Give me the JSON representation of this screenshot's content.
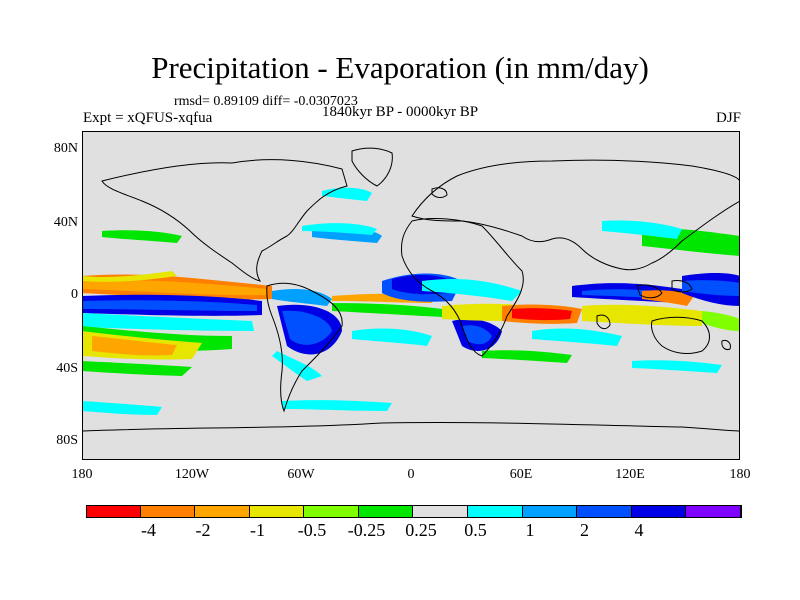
{
  "title": "Precipitation - Evaporation (in mm/day)",
  "stats": "rmsd= 0.89109 diff= -0.0307023",
  "experiment": "Expt = xQFUS-xqfua",
  "period": "1840kyr BP - 0000kyr BP",
  "season": "DJF",
  "lat_labels": [
    "80N",
    "40N",
    "0",
    "40S",
    "80S"
  ],
  "lon_labels": [
    "180",
    "120W",
    "60W",
    "0",
    "60E",
    "120E",
    "180"
  ],
  "colorbar": {
    "colors": [
      "#ff0000",
      "#ff8000",
      "#ffa500",
      "#e6e600",
      "#80ff00",
      "#00e600",
      "#e0e0e0",
      "#00ffff",
      "#00a0ff",
      "#0050ff",
      "#0000e6",
      "#8000ff"
    ],
    "labels": [
      "-4",
      "-2",
      "-1",
      "-0.5",
      "-0.25",
      "0.25",
      "0.5",
      "1",
      "2",
      "4"
    ]
  }
}
